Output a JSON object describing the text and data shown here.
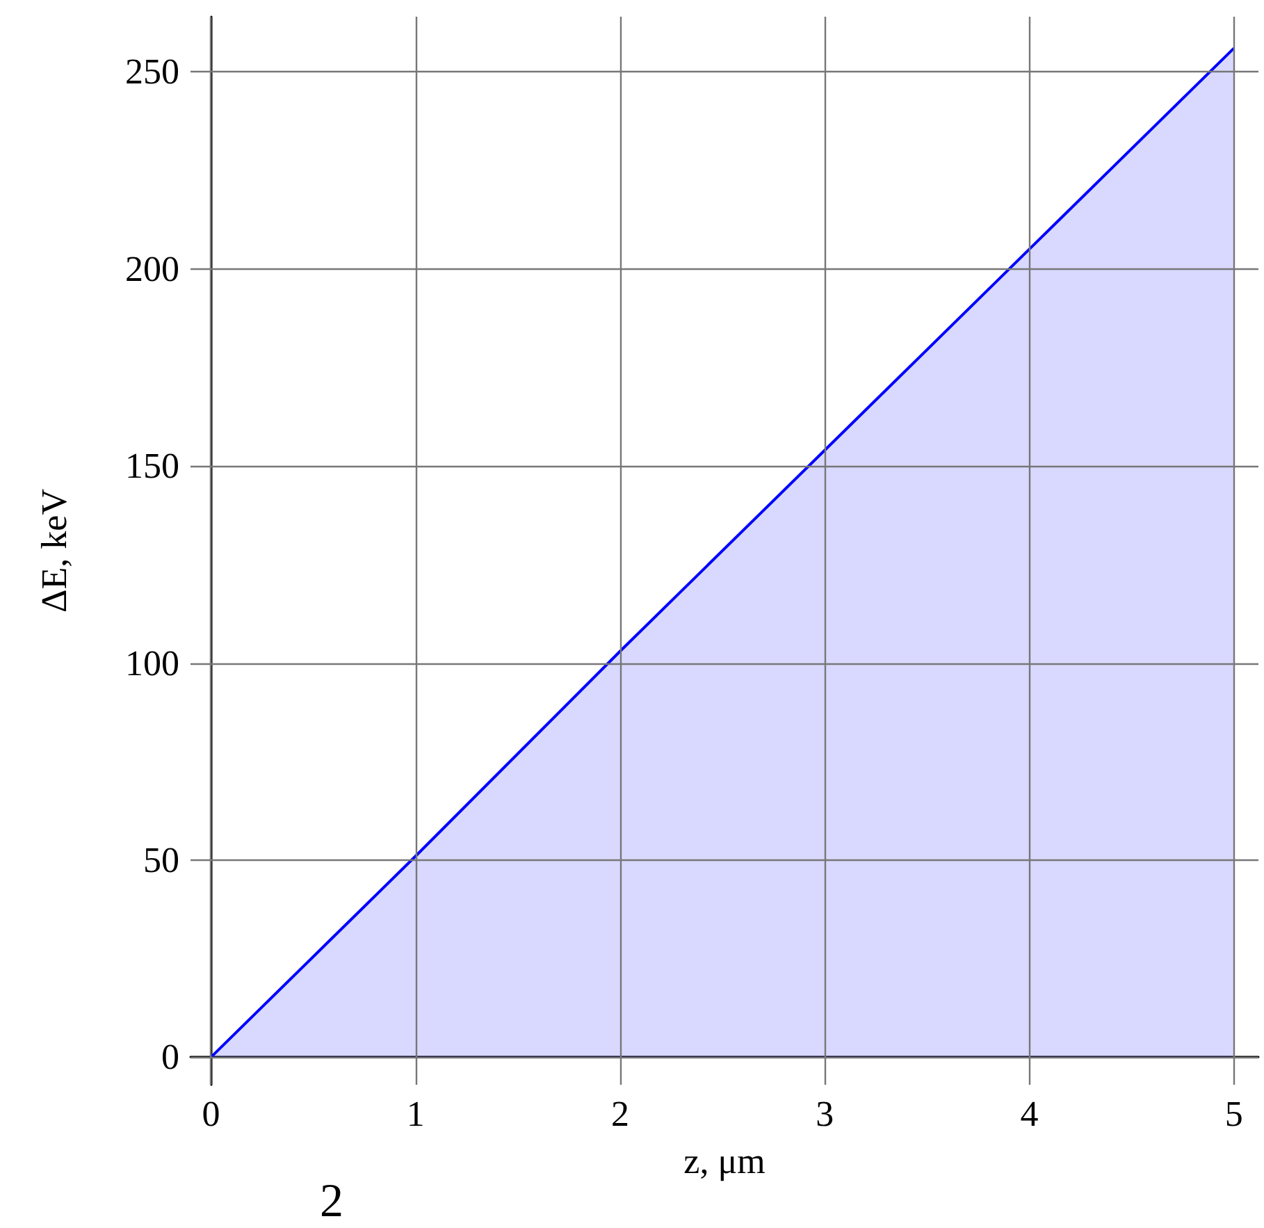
{
  "chart_data": {
    "type": "area",
    "xlabel": "z, μm",
    "ylabel": "ΔE, keV",
    "x": [
      0,
      1,
      2,
      3,
      4,
      5
    ],
    "series": [
      {
        "color": "#0000ff",
        "values": [
          0,
          51,
          103,
          154,
          205,
          256
        ]
      }
    ],
    "xlim": [
      -0.1,
      5.12
    ],
    "xticks": [
      0,
      1,
      2,
      3,
      4,
      5
    ],
    "ylim": [
      -7,
      264
    ],
    "yticks": [
      0,
      50,
      100,
      150,
      200,
      250
    ],
    "grid": true,
    "marker": "none",
    "line_style": "solid",
    "annotations": [
      "2"
    ]
  }
}
